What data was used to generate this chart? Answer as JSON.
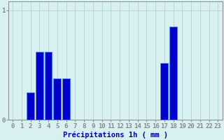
{
  "hours": [
    0,
    1,
    2,
    3,
    4,
    5,
    6,
    7,
    8,
    9,
    10,
    11,
    12,
    13,
    14,
    15,
    16,
    17,
    18,
    19,
    20,
    21,
    22,
    23
  ],
  "values": [
    0,
    0,
    0.25,
    0.62,
    0.62,
    0.38,
    0.38,
    0,
    0,
    0,
    0,
    0,
    0,
    0,
    0,
    0,
    0,
    0.52,
    0.85,
    0,
    0,
    0,
    0,
    0
  ],
  "bar_color": "#0000cc",
  "bar_edge_color": "#4488ff",
  "background_color": "#d8f0f0",
  "grid_color": "#b8d8d8",
  "axis_color": "#888888",
  "text_color": "#0000bb",
  "xlabel": "Précipitations 1h ( mm )",
  "ylim": [
    0,
    1.08
  ],
  "yticks": [
    0,
    1
  ],
  "xlim": [
    -0.5,
    23.5
  ],
  "tick_fontsize": 6.5,
  "label_fontsize": 7.5
}
